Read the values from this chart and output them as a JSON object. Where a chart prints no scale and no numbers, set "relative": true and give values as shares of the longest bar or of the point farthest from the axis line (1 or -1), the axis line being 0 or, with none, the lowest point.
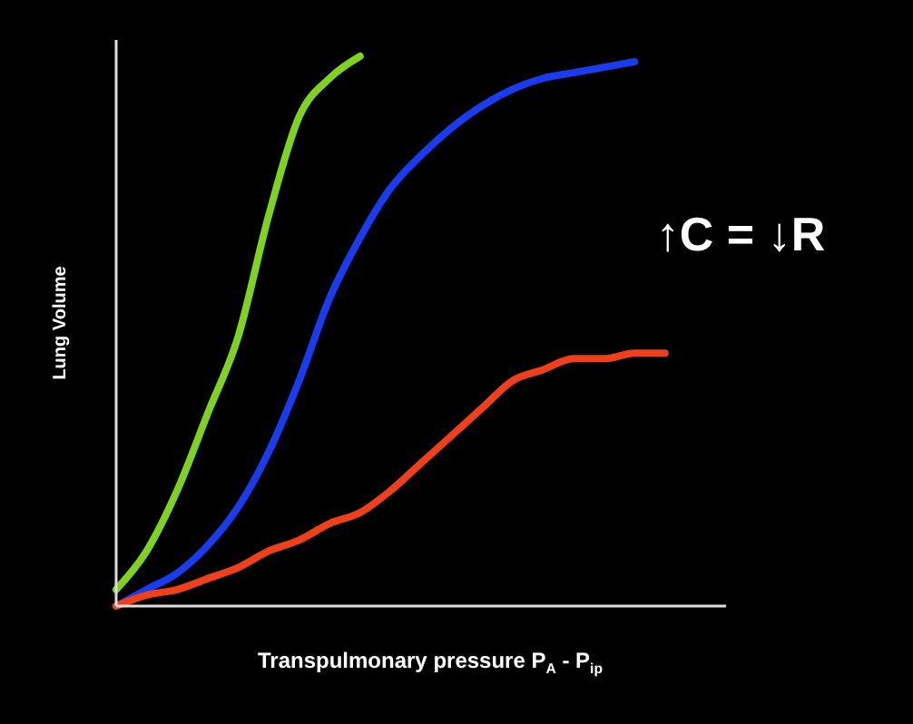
{
  "chart_data": {
    "type": "line",
    "relative": true,
    "xlabel": "Transpulmonary pressure  P$_{A}$ - P$_{ip}$",
    "ylabel": "Lung Volume",
    "annotations": [
      "↑C = ↓R"
    ],
    "categories": [
      null,
      null,
      null,
      null,
      null,
      null,
      null,
      null,
      null,
      null,
      null,
      null,
      null,
      null,
      null,
      null,
      null,
      null,
      null,
      null,
      null
    ],
    "series": [
      {
        "color": "#7ed321",
        "values": [
          0.03,
          0.1,
          0.21,
          0.35,
          0.49,
          0.71,
          0.89,
          0.96,
          1.0,
          null,
          null,
          null,
          null,
          null,
          null,
          null,
          null,
          null,
          null,
          null,
          null
        ]
      },
      {
        "color": "#1a3cf0",
        "values": [
          0,
          0.03,
          0.06,
          0.11,
          0.18,
          0.28,
          0.41,
          0.56,
          0.67,
          0.76,
          0.82,
          0.87,
          0.91,
          0.94,
          0.96,
          0.97,
          0.98,
          0.99,
          null,
          null,
          null
        ]
      },
      {
        "color": "#f0401a",
        "values": [
          0,
          0.02,
          0.03,
          0.05,
          0.07,
          0.1,
          0.12,
          0.15,
          0.17,
          0.21,
          0.26,
          0.31,
          0.36,
          0.41,
          0.43,
          0.45,
          0.45,
          0.46,
          0.46,
          null,
          null
        ]
      }
    ]
  }
}
